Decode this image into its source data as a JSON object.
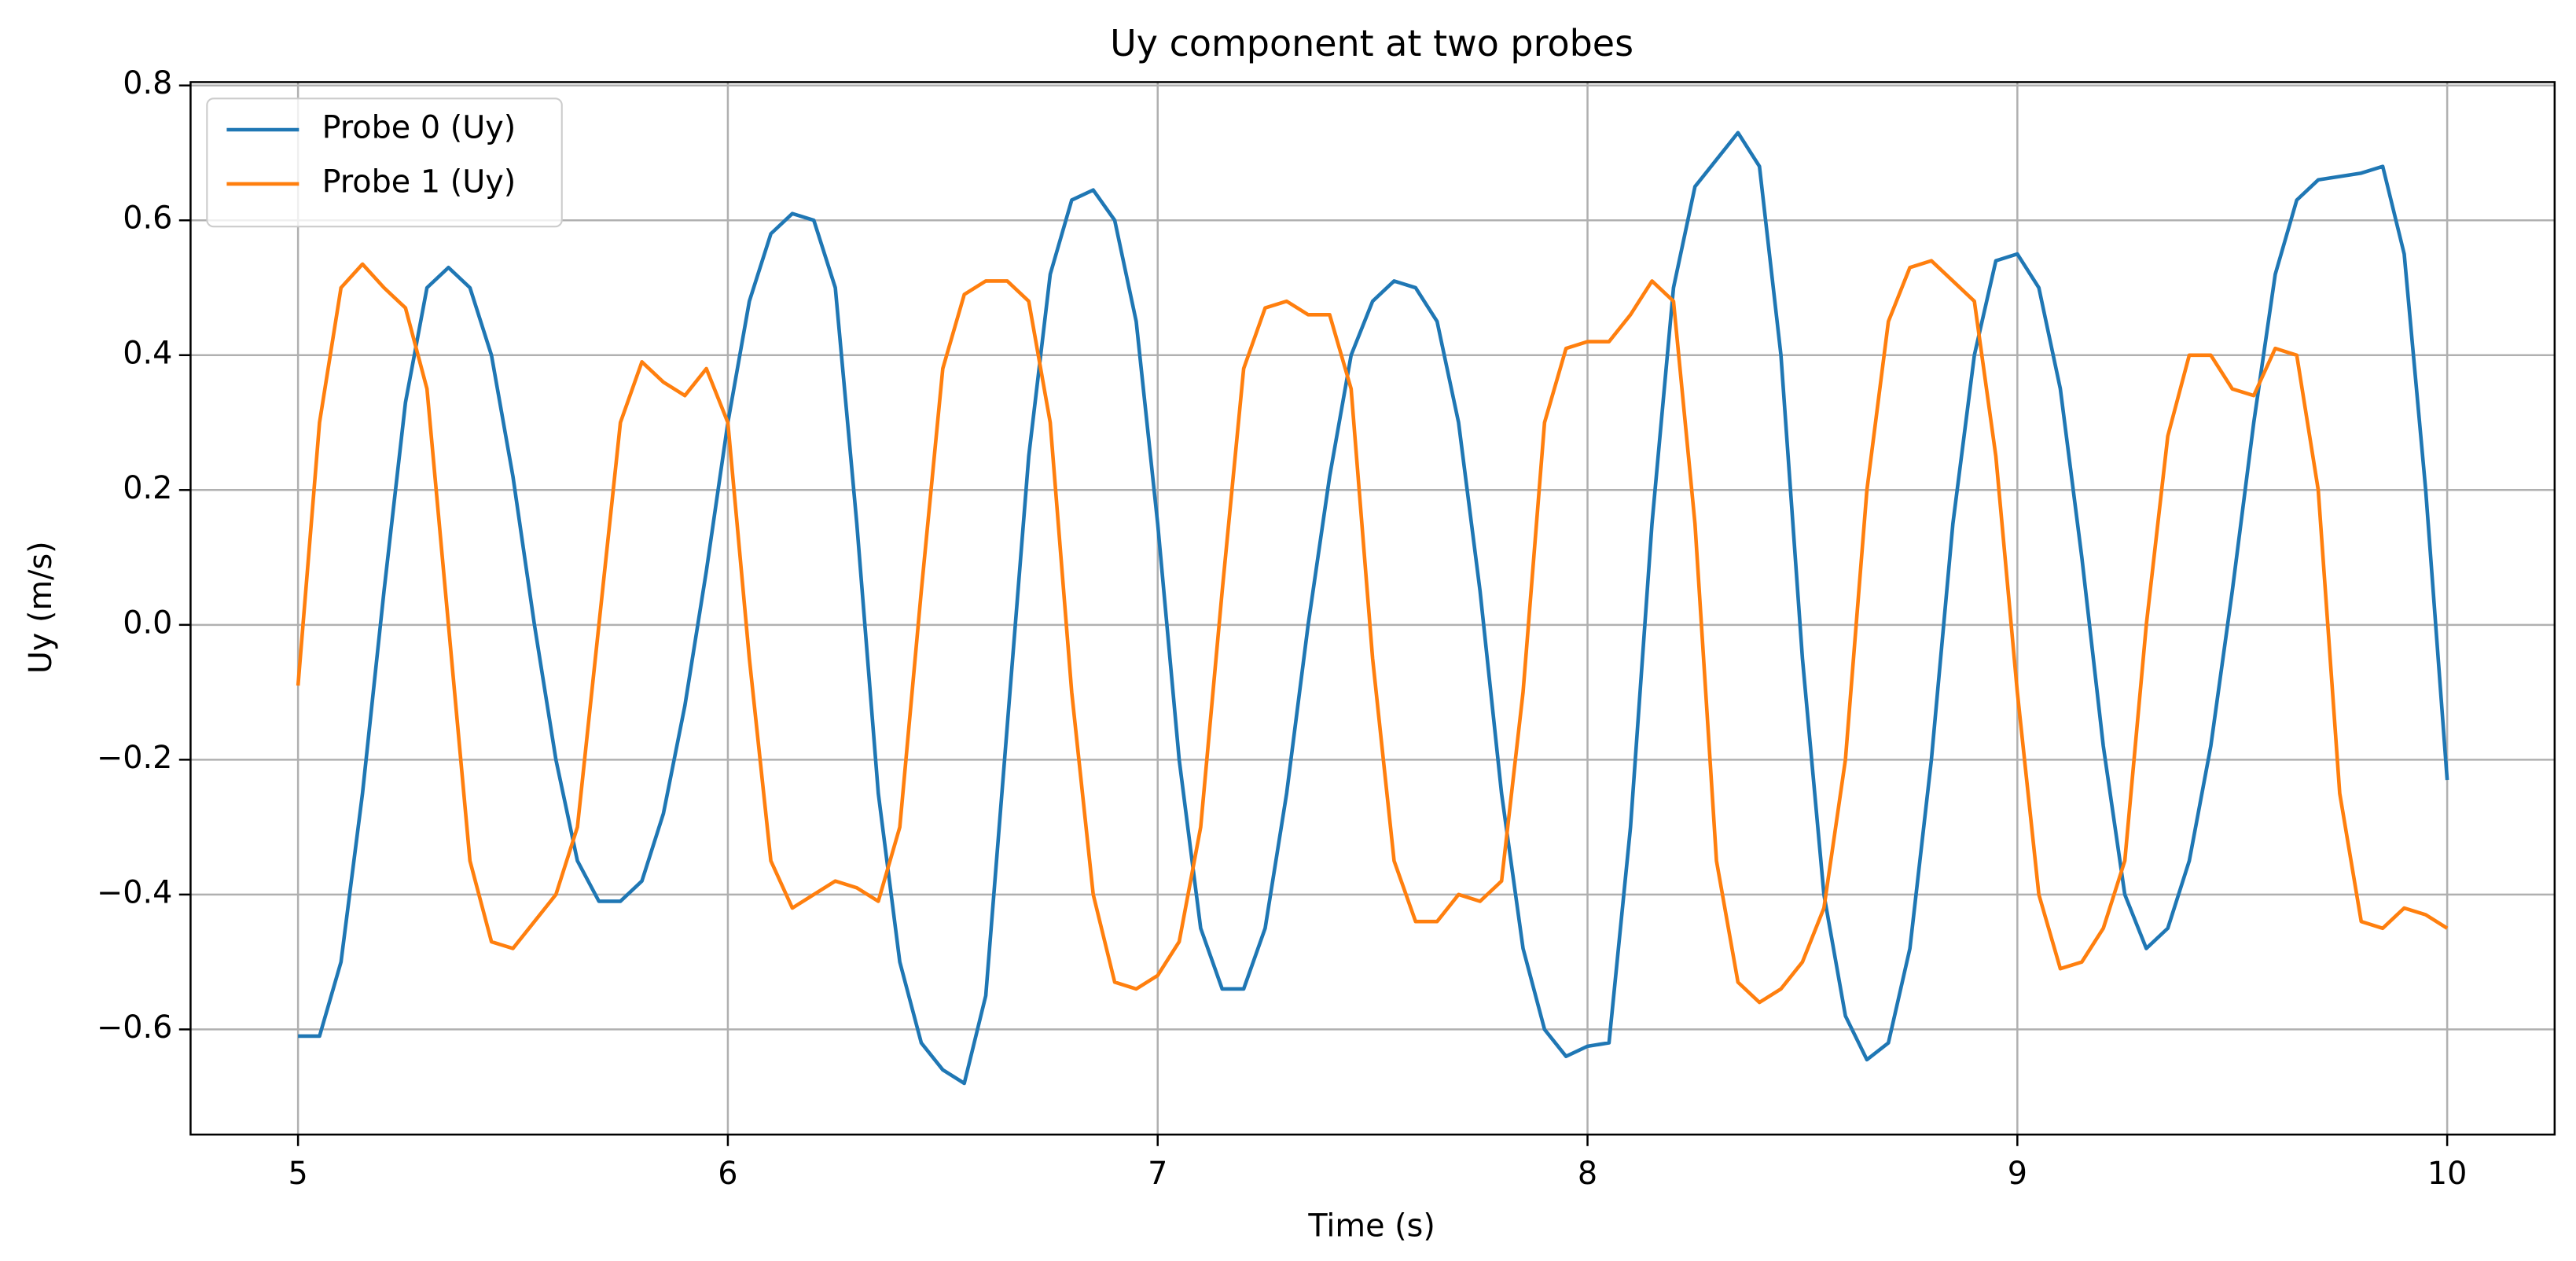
{
  "chart_data": {
    "type": "line",
    "title": "Uy component at two probes",
    "x_label": "Time (s)",
    "y_label": "Uy (m/s)",
    "x": [
      5.0,
      5.05,
      5.1,
      5.15,
      5.2,
      5.25,
      5.3,
      5.35,
      5.4,
      5.45,
      5.5,
      5.55,
      5.6,
      5.65,
      5.7,
      5.75,
      5.8,
      5.85,
      5.9,
      5.95,
      6.0,
      6.05,
      6.1,
      6.15,
      6.2,
      6.25,
      6.3,
      6.35,
      6.4,
      6.45,
      6.5,
      6.55,
      6.6,
      6.65,
      6.7,
      6.75,
      6.8,
      6.85,
      6.9,
      6.95,
      7.0,
      7.05,
      7.1,
      7.15,
      7.2,
      7.25,
      7.3,
      7.35,
      7.4,
      7.45,
      7.5,
      7.55,
      7.6,
      7.65,
      7.7,
      7.75,
      7.8,
      7.85,
      7.9,
      7.95,
      8.0,
      8.05,
      8.1,
      8.15,
      8.2,
      8.25,
      8.3,
      8.35,
      8.4,
      8.45,
      8.5,
      8.55,
      8.6,
      8.65,
      8.7,
      8.75,
      8.8,
      8.85,
      8.9,
      8.95,
      9.0,
      9.05,
      9.1,
      9.15,
      9.2,
      9.25,
      9.3,
      9.35,
      9.4,
      9.45,
      9.5,
      9.55,
      9.6,
      9.65,
      9.7,
      9.75,
      9.8,
      9.85,
      9.9,
      9.95,
      10.0
    ],
    "series": [
      {
        "name": "Probe 0 (Uy)",
        "color": "#1f77b4",
        "values": [
          -0.61,
          -0.61,
          -0.5,
          -0.25,
          0.05,
          0.33,
          0.5,
          0.53,
          0.5,
          0.4,
          0.22,
          0.0,
          -0.2,
          -0.35,
          -0.41,
          -0.41,
          -0.38,
          -0.28,
          -0.12,
          0.08,
          0.3,
          0.48,
          0.58,
          0.61,
          0.6,
          0.5,
          0.15,
          -0.25,
          -0.5,
          -0.62,
          -0.66,
          -0.68,
          -0.55,
          -0.15,
          0.25,
          0.52,
          0.63,
          0.645,
          0.6,
          0.45,
          0.15,
          -0.2,
          -0.45,
          -0.54,
          -0.54,
          -0.45,
          -0.25,
          0.0,
          0.22,
          0.4,
          0.48,
          0.51,
          0.5,
          0.45,
          0.3,
          0.05,
          -0.25,
          -0.48,
          -0.6,
          -0.64,
          -0.625,
          -0.62,
          -0.3,
          0.15,
          0.5,
          0.65,
          0.69,
          0.73,
          0.68,
          0.4,
          -0.05,
          -0.4,
          -0.58,
          -0.645,
          -0.62,
          -0.48,
          -0.2,
          0.15,
          0.4,
          0.54,
          0.55,
          0.5,
          0.35,
          0.1,
          -0.18,
          -0.4,
          -0.48,
          -0.45,
          -0.35,
          -0.18,
          0.05,
          0.3,
          0.52,
          0.63,
          0.66,
          0.665,
          0.67,
          0.68,
          0.55,
          0.2,
          -0.23
        ]
      },
      {
        "name": "Probe 1 (Uy)",
        "color": "#ff7f0e",
        "values": [
          -0.09,
          0.3,
          0.5,
          0.535,
          0.5,
          0.47,
          0.35,
          0.0,
          -0.35,
          -0.47,
          -0.48,
          -0.44,
          -0.4,
          -0.3,
          0.0,
          0.3,
          0.39,
          0.36,
          0.34,
          0.38,
          0.3,
          -0.05,
          -0.35,
          -0.42,
          -0.4,
          -0.38,
          -0.39,
          -0.41,
          -0.3,
          0.05,
          0.38,
          0.49,
          0.51,
          0.51,
          0.48,
          0.3,
          -0.1,
          -0.4,
          -0.53,
          -0.54,
          -0.52,
          -0.47,
          -0.3,
          0.05,
          0.38,
          0.47,
          0.48,
          0.46,
          0.46,
          0.35,
          -0.05,
          -0.35,
          -0.44,
          -0.44,
          -0.4,
          -0.41,
          -0.38,
          -0.1,
          0.3,
          0.41,
          0.42,
          0.42,
          0.46,
          0.51,
          0.48,
          0.15,
          -0.35,
          -0.53,
          -0.56,
          -0.54,
          -0.5,
          -0.42,
          -0.2,
          0.2,
          0.45,
          0.53,
          0.54,
          0.51,
          0.48,
          0.25,
          -0.1,
          -0.4,
          -0.51,
          -0.5,
          -0.45,
          -0.35,
          0.0,
          0.28,
          0.4,
          0.4,
          0.35,
          0.34,
          0.41,
          0.4,
          0.2,
          -0.25,
          -0.44,
          -0.45,
          -0.42,
          -0.43,
          -0.45
        ]
      }
    ],
    "xlim": [
      4.75,
      10.25
    ],
    "xticks": [
      5,
      6,
      7,
      8,
      9,
      10
    ],
    "ylim": [
      -0.756,
      0.805
    ],
    "yticks": [
      {
        "value": -0.6,
        "label": "−0.6"
      },
      {
        "value": -0.4,
        "label": "−0.4"
      },
      {
        "value": -0.2,
        "label": "−0.2"
      },
      {
        "value": 0,
        "label": "0.0"
      },
      0.2,
      0.4,
      0.6,
      0.8
    ],
    "grid": true,
    "legend": "upper-left"
  }
}
